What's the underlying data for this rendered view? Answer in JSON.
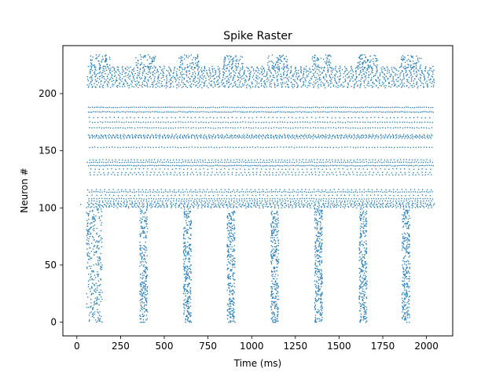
{
  "chart_data": {
    "type": "scatter",
    "title": "Spike Raster",
    "xlabel": "Time (ms)",
    "ylabel": "Neuron #",
    "xlim": [
      -80,
      2150
    ],
    "ylim": [
      -12,
      242
    ],
    "xticks": [
      0,
      250,
      500,
      750,
      1000,
      1250,
      1500,
      1750,
      2000
    ],
    "yticks": [
      0,
      50,
      100,
      150,
      200
    ],
    "marker_color": "#1f77b4",
    "grid": false,
    "legend": "none",
    "sim_end_ms": 2040,
    "populations": [
      {
        "name_visible": false,
        "neurons": [
          0,
          100
        ],
        "pattern": "synchronous bursts",
        "burst_onsets_ms": [
          55,
          360,
          610,
          860,
          1110,
          1360,
          1615,
          1860
        ],
        "burst_width_ms": 45,
        "first_burst_width_ms": 90
      },
      {
        "name_visible": false,
        "neurons": [
          100,
          105
        ],
        "pattern": "dense tonic band",
        "time_range_ms": [
          55,
          2045
        ]
      },
      {
        "name_visible": false,
        "neurons": [
          105,
          188
        ],
        "pattern": "periodic rows (regular spiking)",
        "active_rows": [
          106,
          108,
          111,
          114,
          116,
          129,
          131,
          134,
          137,
          140,
          142,
          153,
          161,
          162,
          163,
          164,
          170,
          175,
          179,
          184,
          188
        ],
        "time_range_ms": [
          60,
          2040
        ]
      },
      {
        "name_visible": false,
        "neurons": [
          205,
          234
        ],
        "pattern": "dense band with periodic caps",
        "cap_onsets_ms": [
          75,
          335,
          585,
          840,
          1090,
          1345,
          1605,
          1855
        ],
        "cap_width_ms": 115,
        "time_range_ms": [
          60,
          2045
        ]
      }
    ],
    "isolated_points": [
      {
        "x": 22,
        "y": 103
      }
    ]
  }
}
